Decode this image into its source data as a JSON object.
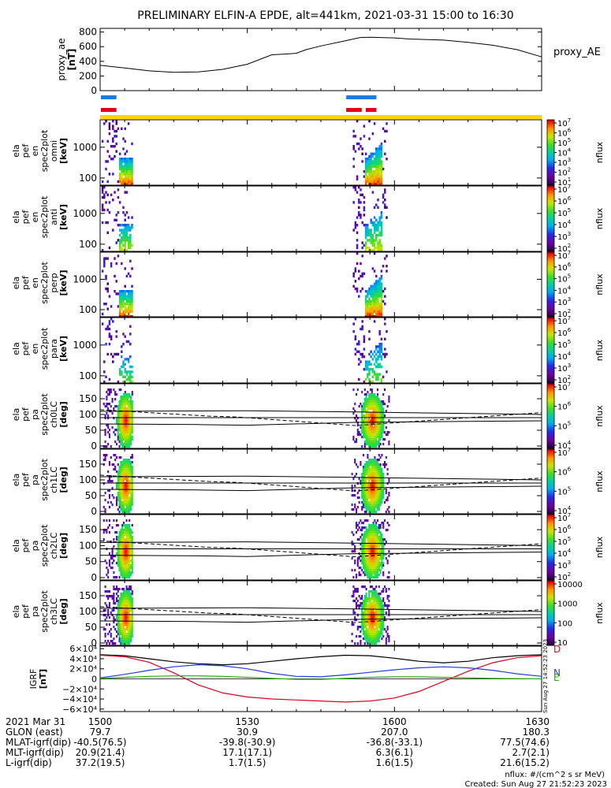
{
  "title": "PRELIMINARY ELFIN-A EPDE, alt=441km, 2021-03-31 15:00 to 16:30",
  "chart_data": {
    "type": "spectrogram",
    "proxy_ae": {
      "ylabel": "proxy_ae",
      "yunit": "[nT]",
      "legend": "proxy_AE",
      "yticks": [
        "800",
        "600",
        "400",
        "200",
        "0"
      ],
      "ylim": [
        0,
        850
      ],
      "x_minutes": [
        0,
        5,
        10,
        15,
        20,
        25,
        30,
        35,
        38,
        40,
        42,
        45,
        50,
        53,
        55,
        60,
        63,
        65,
        70,
        75,
        80,
        85,
        90
      ],
      "values": [
        345,
        310,
        270,
        250,
        255,
        290,
        360,
        490,
        500,
        510,
        560,
        610,
        680,
        725,
        730,
        720,
        705,
        700,
        690,
        660,
        620,
        560,
        460
      ]
    },
    "bars": [
      {
        "row": "blue",
        "color": "#1f7be0",
        "spans": [
          [
            0,
            3
          ],
          [
            50,
            56
          ]
        ]
      },
      {
        "row": "red",
        "color": "#e0001b",
        "spans": [
          [
            0,
            3
          ],
          [
            50,
            53
          ],
          [
            54,
            56
          ]
        ]
      },
      {
        "row": "yellow",
        "color": "#ffd400",
        "spans": [
          [
            0,
            90
          ]
        ]
      }
    ],
    "energy_panels": [
      {
        "ylabel": [
          "ela",
          "pef",
          "en",
          "spec2plot",
          "omni",
          "[keV]"
        ],
        "yticks": [
          "1000",
          "100"
        ],
        "cbar_labels": [
          "10",
          "10",
          "10",
          "10",
          "10",
          "10",
          "10"
        ],
        "cbar_exps": [
          "7",
          "6",
          "5",
          "4",
          "3",
          "2",
          "1"
        ],
        "cbar_title": "nflux"
      },
      {
        "ylabel": [
          "ela",
          "pef",
          "en",
          "spec2plot",
          "anti",
          "[keV]"
        ],
        "yticks": [
          "1000",
          "100"
        ],
        "cbar_labels": [
          "10",
          "10",
          "10",
          "10",
          "10",
          "10"
        ],
        "cbar_exps": [
          "7",
          "6",
          "5",
          "4",
          "3",
          "2"
        ],
        "cbar_title": "nflux"
      },
      {
        "ylabel": [
          "ela",
          "pef",
          "en",
          "spec2plot",
          "perp",
          "[keV]"
        ],
        "yticks": [
          "1000",
          "100"
        ],
        "cbar_labels": [
          "10",
          "10",
          "10",
          "10",
          "10",
          "10"
        ],
        "cbar_exps": [
          "7",
          "6",
          "5",
          "4",
          "3",
          "2"
        ],
        "cbar_title": "nflux"
      },
      {
        "ylabel": [
          "ela",
          "pef",
          "en",
          "spec2plot",
          "para",
          "[keV]"
        ],
        "yticks": [
          "1000",
          "100"
        ],
        "cbar_labels": [
          "10",
          "10",
          "10",
          "10",
          "10",
          "10"
        ],
        "cbar_exps": [
          "7",
          "6",
          "5",
          "4",
          "3",
          "2"
        ],
        "cbar_title": "nflux"
      }
    ],
    "pa_panels": [
      {
        "ylabel": [
          "ela",
          "pef",
          "pa",
          "spec2plot",
          "ch0LC",
          "[deg]"
        ],
        "yticks": [
          "150",
          "100",
          "50",
          "0"
        ],
        "cbar_labels": [
          "10",
          "10",
          "10",
          "10"
        ],
        "cbar_exps": [
          "7",
          "6",
          "5",
          "4"
        ],
        "cbar_title": "nflux"
      },
      {
        "ylabel": [
          "ela",
          "pef",
          "pa",
          "spec2plot",
          "ch1LC",
          "[deg]"
        ],
        "yticks": [
          "150",
          "100",
          "50",
          "0"
        ],
        "cbar_labels": [
          "10",
          "10",
          "10",
          "10"
        ],
        "cbar_exps": [
          "7",
          "6",
          "5",
          "4"
        ],
        "cbar_title": "nflux"
      },
      {
        "ylabel": [
          "ela",
          "pef",
          "pa",
          "spec2plot",
          "ch2LC",
          "[deg]"
        ],
        "yticks": [
          "150",
          "100",
          "50",
          "0"
        ],
        "cbar_labels": [
          "10",
          "10",
          "10",
          "10",
          "10",
          "10"
        ],
        "cbar_exps": [
          "7",
          "6",
          "5",
          "4",
          "3",
          "2"
        ],
        "cbar_title": "nflux"
      },
      {
        "ylabel": [
          "ela",
          "pef",
          "pa",
          "spec2plot",
          "ch3LC",
          "[deg]"
        ],
        "yticks": [
          "150",
          "100",
          "50",
          "0"
        ],
        "cbar_labels": [
          "10000",
          "1000",
          "100",
          "10"
        ],
        "cbar_exps": [
          "",
          "",
          "",
          ""
        ],
        "cbar_title": "nflux"
      }
    ],
    "igrf": {
      "ylabel": "IGRF",
      "yunit": "[nT]",
      "yticks": [
        "6×10⁴",
        "4×10⁴",
        "2×10⁴",
        "0",
        "−2×10⁴",
        "−4×10⁴",
        "−6×10⁴"
      ],
      "ylim": [
        -65000,
        65000
      ],
      "legend": [
        {
          "label": "D",
          "color": "#e0001b"
        },
        {
          "label": "N",
          "color": "#1f3fe0"
        },
        {
          "label": "E",
          "color": "#22b000"
        }
      ],
      "x_minutes": [
        0,
        5,
        10,
        15,
        20,
        25,
        30,
        35,
        40,
        45,
        50,
        55,
        60,
        65,
        70,
        75,
        80,
        85,
        90
      ],
      "D": [
        47000,
        44000,
        33000,
        12000,
        -12000,
        -28000,
        -36000,
        -40000,
        -42000,
        -44000,
        -46000,
        -44000,
        -38000,
        -25000,
        -5000,
        15000,
        32000,
        42000,
        46000
      ],
      "N": [
        2000,
        9000,
        17000,
        24000,
        28000,
        26000,
        20000,
        11000,
        5000,
        4000,
        8000,
        13000,
        18000,
        22000,
        24000,
        22000,
        17000,
        10000,
        5000
      ],
      "E": [
        1000,
        3000,
        5000,
        6000,
        6000,
        5000,
        3000,
        1000,
        -1000,
        -1000,
        1000,
        3000,
        4000,
        4000,
        3000,
        2000,
        1000,
        500,
        0
      ],
      "total": [
        48000,
        46000,
        40000,
        34000,
        30000,
        28000,
        30000,
        35000,
        40000,
        44000,
        47000,
        46000,
        41000,
        35000,
        32000,
        35000,
        42000,
        46000,
        48000
      ]
    },
    "x_ticks": [
      "1500",
      "1530",
      "1600",
      "1630"
    ],
    "x_minor": [
      0,
      5,
      10,
      15,
      20,
      25,
      30,
      35,
      40,
      45,
      50,
      55,
      60,
      65,
      70,
      75,
      80,
      85,
      90
    ]
  },
  "footer": {
    "rows": [
      {
        "label": "2021 Mar 31",
        "v": [
          "1500",
          "1530",
          "1600",
          "1630"
        ]
      },
      {
        "label": "GLON (east)",
        "v": [
          "79.7",
          "30.9",
          "207.0",
          "180.3"
        ]
      },
      {
        "label": "MLAT-igrf(dip)",
        "v": [
          "-40.5(76.5)",
          "-39.8(-30.9)",
          "-36.8(-33.1)",
          "77.5(74.6)"
        ]
      },
      {
        "label": "MLT-igrf(dip)",
        "v": [
          "20.9(21.4)",
          "17.1(17.1)",
          "6.3(6.1)",
          "2.7(2.1)"
        ]
      },
      {
        "label": "L-igrf(dip)",
        "v": [
          "37.2(19.5)",
          "1.7(1.5)",
          "1.6(1.5)",
          "21.6(15.2)"
        ]
      }
    ],
    "nflux_note": "nflux: #/(cm^2 s sr MeV)",
    "created": "Created: Sun Aug 27 21:52:23 2023",
    "side_stamp": "Sun Aug 27 14:52:23 2023"
  }
}
